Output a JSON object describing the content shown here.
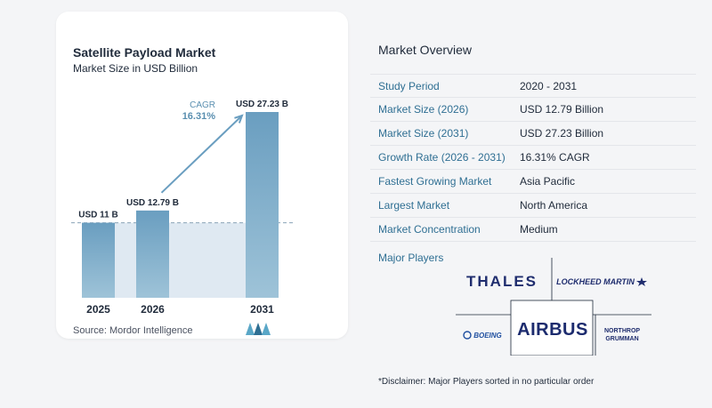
{
  "chart_card": {
    "title": "Satellite Payload Market",
    "subtitle": "Market Size in USD Billion",
    "source": "Source:  Mordor Intelligence"
  },
  "chart_data": {
    "type": "bar",
    "title": "Satellite Payload Market",
    "subtitle": "Market Size in USD Billion",
    "categories": [
      "2025",
      "2026",
      "2031"
    ],
    "values": [
      11,
      12.79,
      27.23
    ],
    "data_labels": [
      "USD 11 B",
      "USD 12.79 B",
      "USD 27.23 B"
    ],
    "ylim": [
      0,
      27.23
    ],
    "grid": false,
    "annotation": {
      "label": "CAGR",
      "value": "16.31%"
    },
    "colors": {
      "bar": "#6a9ec0",
      "bar_light": "#9ec3d8",
      "baseline_band": "#dfe9f2",
      "arrow": "#6a9ec0"
    }
  },
  "overview": {
    "title": "Market Overview",
    "rows": [
      {
        "key": "Study Period",
        "value": "2020 - 2031"
      },
      {
        "key": "Market Size (2026)",
        "value": "USD 12.79 Billion"
      },
      {
        "key": "Market Size (2031)",
        "value": "USD 27.23 Billion"
      },
      {
        "key": "Growth Rate (2026 - 2031)",
        "value": "16.31% CAGR"
      },
      {
        "key": "Fastest Growing Market",
        "value": "Asia Pacific"
      },
      {
        "key": "Largest Market",
        "value": "North America"
      },
      {
        "key": "Market Concentration",
        "value": "Medium"
      }
    ]
  },
  "players": {
    "title": "Major Players",
    "logos": [
      "THALES",
      "LOCKHEED MARTIN",
      "BOEING",
      "AIRBUS",
      "NORTHROP GRUMMAN"
    ],
    "disclaimer": "*Disclaimer: Major Players sorted in no particular order"
  }
}
